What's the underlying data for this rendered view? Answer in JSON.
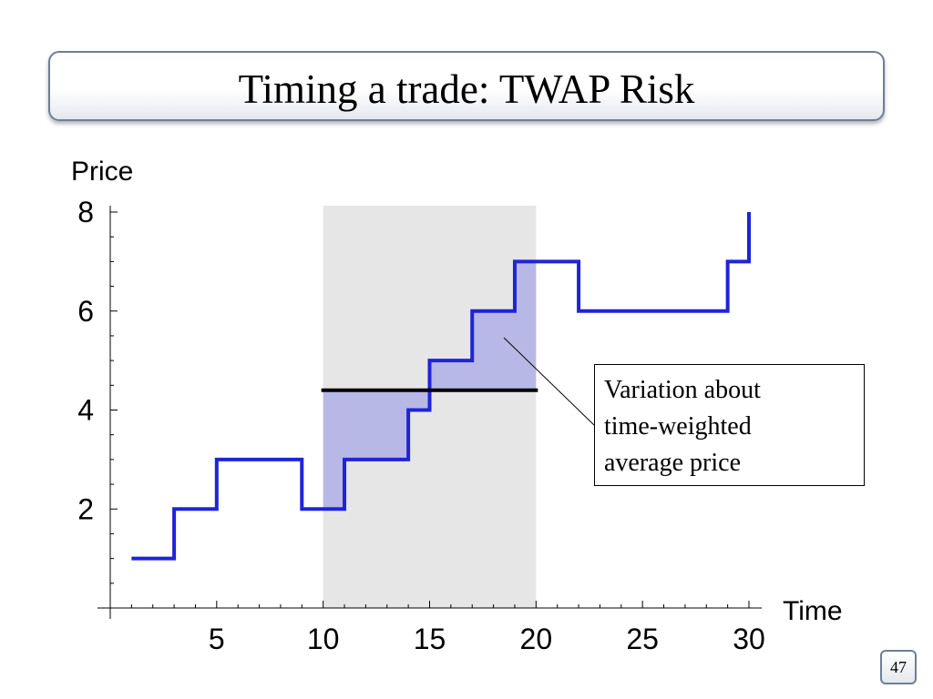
{
  "slide": {
    "title": "Timing a trade: TWAP Risk",
    "page_number": "47"
  },
  "callout": {
    "lines": [
      "Variation about",
      "time-weighted",
      "average price"
    ]
  },
  "colors": {
    "price_line": "#1f24d8",
    "shaded_window": "#e6e6e6",
    "variation_fill": "#b8b8e6",
    "twap_line": "#000000"
  },
  "chart_data": {
    "type": "line",
    "step": true,
    "title": "",
    "xlabel": "Time",
    "ylabel": "Price",
    "xlim": [
      0,
      30
    ],
    "ylim": [
      0,
      8
    ],
    "xticks": [
      5,
      10,
      15,
      20,
      25,
      30
    ],
    "yticks": [
      2,
      4,
      6,
      8
    ],
    "series": [
      {
        "points": [
          [
            1,
            1
          ],
          [
            3,
            1
          ],
          [
            3,
            2
          ],
          [
            5,
            2
          ],
          [
            5,
            3
          ],
          [
            9,
            3
          ],
          [
            9,
            2
          ],
          [
            11,
            2
          ],
          [
            11,
            3
          ],
          [
            14,
            3
          ],
          [
            14,
            4
          ],
          [
            15,
            4
          ],
          [
            15,
            5
          ],
          [
            17,
            5
          ],
          [
            17,
            6
          ],
          [
            19,
            6
          ],
          [
            19,
            7
          ],
          [
            22,
            7
          ],
          [
            22,
            6
          ],
          [
            29,
            6
          ],
          [
            29,
            7
          ],
          [
            30,
            7
          ],
          [
            30,
            8
          ]
        ]
      }
    ],
    "twap_window": [
      10,
      20
    ],
    "twap_value": 4.4,
    "grid": false
  }
}
